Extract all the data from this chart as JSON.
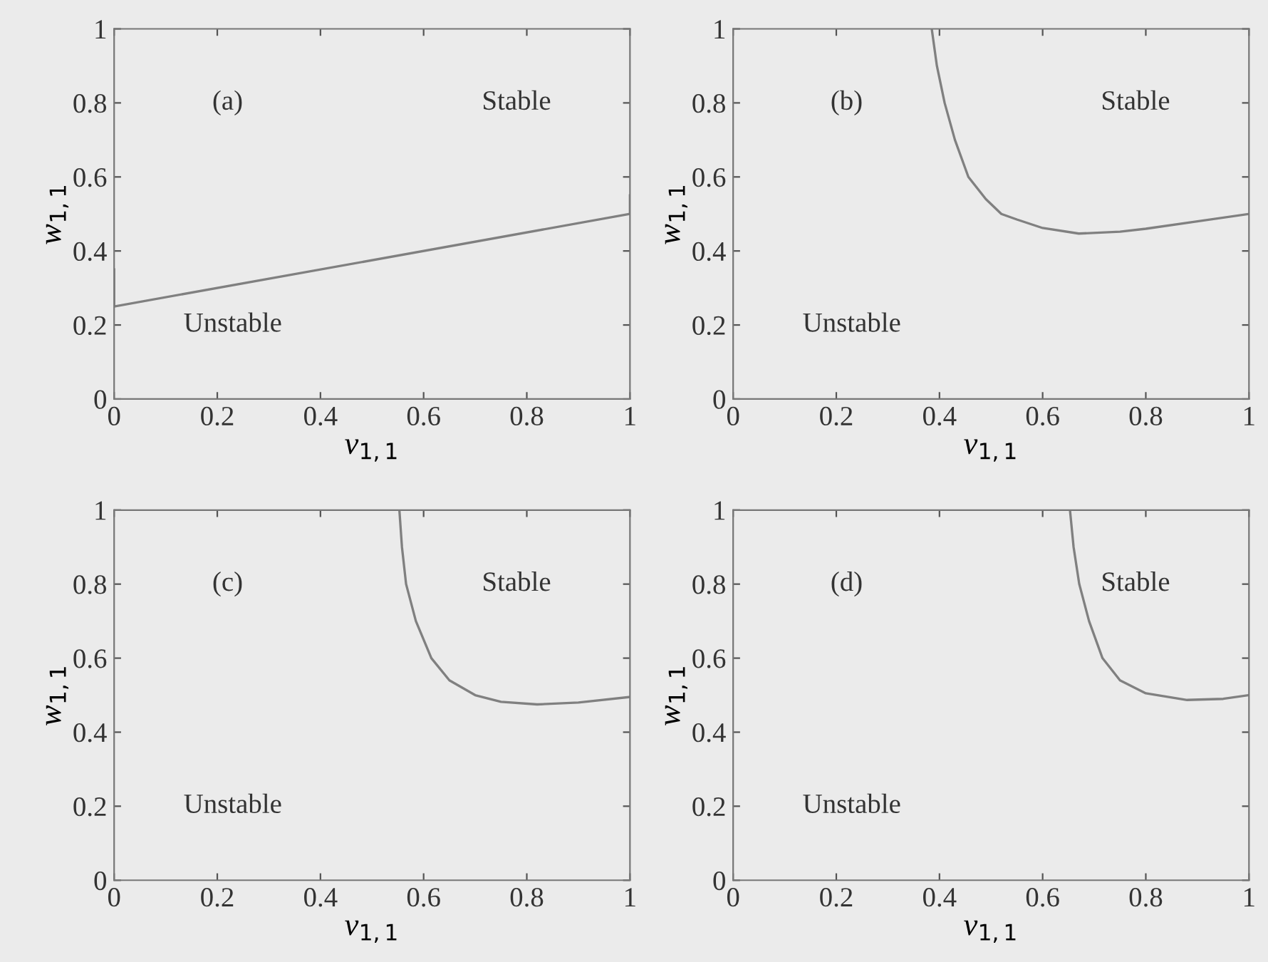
{
  "chart_data": [
    {
      "type": "line",
      "xlabel": "v$_{1,1}$",
      "ylabel": "w$_{1,1}$",
      "annotations": [
        "(a)",
        "Stable",
        "Unstable"
      ],
      "xlim": [
        0,
        1
      ],
      "ylim": [
        0,
        1
      ],
      "xticks": [
        0,
        0.2,
        0.4,
        0.6,
        0.8,
        1
      ],
      "yticks": [
        0,
        0.2,
        0.4,
        0.6,
        0.8,
        1
      ],
      "grid": false,
      "legend": false,
      "series": [
        {
          "color": "#808080",
          "x": [
            0,
            0,
            1,
            1
          ],
          "values": [
            0.35,
            0.25,
            0.5,
            0.55
          ]
        }
      ]
    },
    {
      "type": "line",
      "xlabel": "v$_{1,1}$",
      "ylabel": "w$_{1,1}$",
      "annotations": [
        "(b)",
        "Stable",
        "Unstable"
      ],
      "xlim": [
        0,
        1
      ],
      "ylim": [
        0,
        1
      ],
      "xticks": [
        0,
        0.2,
        0.4,
        0.6,
        0.8,
        1
      ],
      "yticks": [
        0,
        0.2,
        0.4,
        0.6,
        0.8,
        1
      ],
      "grid": false,
      "legend": false,
      "series": [
        {
          "color": "#808080",
          "x": [
            0.385,
            0.395,
            0.41,
            0.43,
            0.456,
            0.49,
            0.52,
            0.55,
            0.6,
            0.67,
            0.75,
            0.8,
            0.9,
            1
          ],
          "values": [
            1,
            0.9,
            0.8,
            0.7,
            0.6,
            0.54,
            0.5,
            0.485,
            0.462,
            0.447,
            0.452,
            0.46,
            0.48,
            0.5
          ]
        }
      ]
    },
    {
      "type": "line",
      "xlabel": "v$_{1,1}$",
      "ylabel": "w$_{1,1}$",
      "annotations": [
        "(c)",
        "Stable",
        "Unstable"
      ],
      "xlim": [
        0,
        1
      ],
      "ylim": [
        0,
        1
      ],
      "xticks": [
        0,
        0.2,
        0.4,
        0.6,
        0.8,
        1
      ],
      "yticks": [
        0,
        0.2,
        0.4,
        0.6,
        0.8,
        1
      ],
      "grid": false,
      "legend": false,
      "series": [
        {
          "color": "#808080",
          "x": [
            0.553,
            0.558,
            0.566,
            0.585,
            0.615,
            0.65,
            0.7,
            0.75,
            0.82,
            0.9,
            1
          ],
          "values": [
            1,
            0.9,
            0.8,
            0.7,
            0.6,
            0.54,
            0.5,
            0.482,
            0.475,
            0.48,
            0.495
          ]
        }
      ]
    },
    {
      "type": "line",
      "xlabel": "v$_{1,1}$",
      "ylabel": "w$_{1,1}$",
      "annotations": [
        "(d)",
        "Stable",
        "Unstable"
      ],
      "xlim": [
        0,
        1
      ],
      "ylim": [
        0,
        1
      ],
      "xticks": [
        0,
        0.2,
        0.4,
        0.6,
        0.8,
        1
      ],
      "yticks": [
        0,
        0.2,
        0.4,
        0.6,
        0.8,
        1
      ],
      "grid": false,
      "legend": false,
      "series": [
        {
          "color": "#808080",
          "x": [
            0.653,
            0.66,
            0.671,
            0.69,
            0.716,
            0.75,
            0.8,
            0.88,
            0.95,
            1
          ],
          "values": [
            1,
            0.9,
            0.8,
            0.7,
            0.6,
            0.54,
            0.505,
            0.487,
            0.49,
            0.5
          ]
        }
      ]
    }
  ]
}
